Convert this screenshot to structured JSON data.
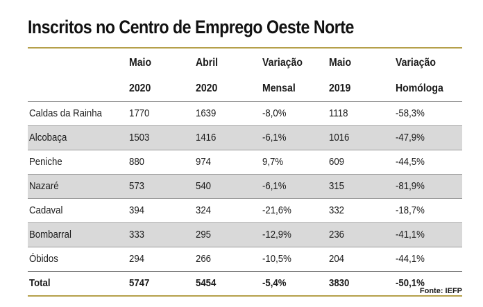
{
  "title": "Inscritos no Centro de Emprego Oeste Norte",
  "colors": {
    "accent": "#b5a04a",
    "shade": "#d9d9d9",
    "text": "#1a1a1a"
  },
  "chart_data": {
    "type": "table",
    "title": "Inscritos no Centro de Emprego Oeste Norte",
    "columns": [
      {
        "line1": "",
        "line2": ""
      },
      {
        "line1": "Maio",
        "line2": "2020"
      },
      {
        "line1": "Abril",
        "line2": "2020"
      },
      {
        "line1": "Variação",
        "line2": "Mensal"
      },
      {
        "line1": "Maio",
        "line2": "2019"
      },
      {
        "line1": "Variação",
        "line2": "Homóloga"
      }
    ],
    "rows": [
      [
        "Caldas da Rainha",
        "1770",
        "1639",
        "-8,0%",
        "1118",
        "-58,3%"
      ],
      [
        "Alcobaça",
        "1503",
        "1416",
        "-6,1%",
        "1016",
        "-47,9%"
      ],
      [
        "Peniche",
        "880",
        "974",
        "9,7%",
        "609",
        "-44,5%"
      ],
      [
        "Nazaré",
        "573",
        "540",
        "-6,1%",
        "315",
        "-81,9%"
      ],
      [
        "Cadaval",
        "394",
        "324",
        "-21,6%",
        "332",
        "-18,7%"
      ],
      [
        "Bombarral",
        "333",
        "295",
        "-12,9%",
        "236",
        "-41,1%"
      ],
      [
        "Óbidos",
        "294",
        "266",
        "-10,5%",
        "204",
        "-44,1%"
      ]
    ],
    "total": [
      "Total",
      "5747",
      "5454",
      "-5,4%",
      "3830",
      "-50,1%"
    ]
  },
  "source": "Fonte: IEFP"
}
